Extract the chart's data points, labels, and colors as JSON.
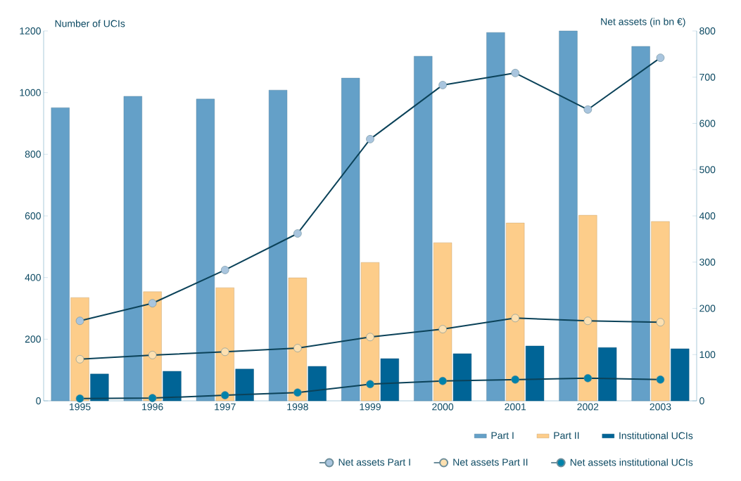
{
  "chart_data": {
    "type": "bar",
    "ylabel": "Number of UCIs",
    "y2label": "Net assets (in bn €)",
    "categories": [
      "1995",
      "1996",
      "1997",
      "1998",
      "1999",
      "2000",
      "2001",
      "2002",
      "2003"
    ],
    "series": [
      {
        "name": "Part I",
        "color": "#64a0c8",
        "values": [
          951,
          988,
          979,
          1008,
          1047,
          1118,
          1195,
          1200,
          1150
        ]
      },
      {
        "name": "Part II",
        "color": "#fdcd8a",
        "values": [
          335,
          354,
          367,
          399,
          449,
          513,
          577,
          602,
          582
        ]
      },
      {
        "name": "Institutional UCIs",
        "color": "#006496",
        "values": [
          87,
          96,
          103,
          112,
          137,
          153,
          178,
          173,
          169
        ]
      },
      {
        "name": "Net assets Part I",
        "type": "line",
        "axis": "y2",
        "marker": "circle",
        "color": "#a9c5de",
        "values": [
          173,
          211,
          283,
          362,
          566,
          683,
          709,
          630,
          742
        ]
      },
      {
        "name": "Net assets Part II",
        "type": "line",
        "axis": "y2",
        "marker": "circle",
        "color": "#fde0b0",
        "values": [
          90,
          99,
          106,
          114,
          138,
          155,
          179,
          173,
          170
        ]
      },
      {
        "name": "Net assets institutional UCIs",
        "type": "line",
        "axis": "y2",
        "marker": "circle",
        "color": "#0082aa",
        "values": [
          5,
          6,
          12,
          18,
          36,
          43,
          46,
          49,
          46
        ]
      }
    ],
    "ylim": [
      0,
      1200
    ],
    "yticks": [
      0,
      200,
      400,
      600,
      800,
      1000,
      1200
    ],
    "y2lim": [
      0,
      800
    ],
    "y2ticks": [
      0,
      100,
      200,
      300,
      400,
      500,
      600,
      700,
      800
    ],
    "legend": "bottom right"
  }
}
